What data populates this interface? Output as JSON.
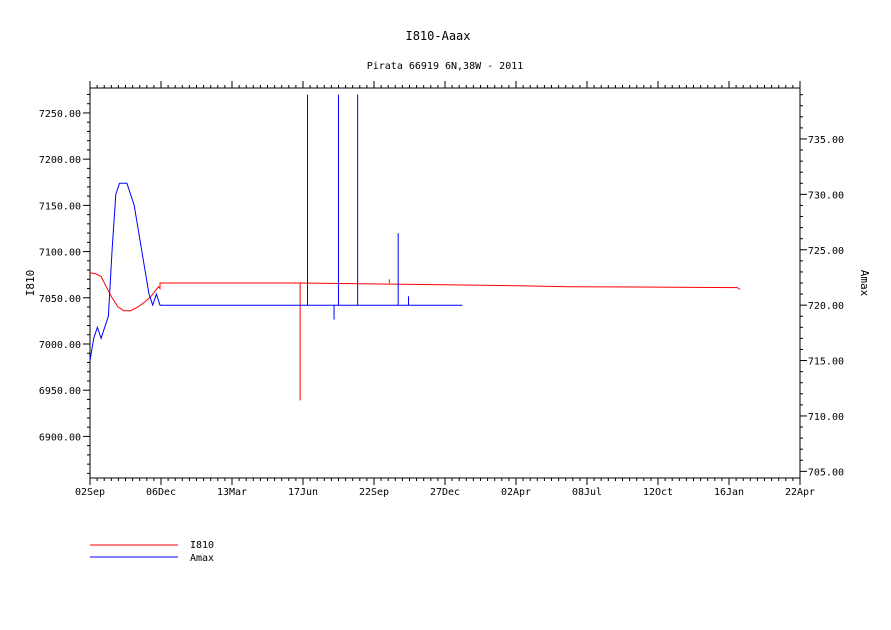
{
  "chart_data": {
    "type": "line",
    "title": "I810-Aaax",
    "subtitle": "Pirata 66919 6N,38W - 2011",
    "xlabel": "",
    "ylabel_left": "I810",
    "ylabel_right": "Amax",
    "x_ticks": [
      "02Sep",
      "06Dec",
      "13Mar",
      "17Jun",
      "22Sep",
      "27Dec",
      "02Apr",
      "08Jul",
      "12Oct",
      "16Jan",
      "22Apr"
    ],
    "xlim_days": [
      0,
      963
    ],
    "ylim_left": [
      6855,
      7277
    ],
    "ylim_right": [
      704.4,
      739.6
    ],
    "y_left_ticks": [
      6900,
      6950,
      7000,
      7050,
      7100,
      7150,
      7200,
      7250
    ],
    "y_left_tick_labels": [
      "6900.00",
      "6950.00",
      "7000.00",
      "7050.00",
      "7100.00",
      "7150.00",
      "7200.00",
      "7250.00"
    ],
    "y_right_ticks": [
      705,
      710,
      715,
      720,
      725,
      730,
      735
    ],
    "y_right_tick_labels": [
      "705.00",
      "710.00",
      "715.00",
      "720.00",
      "725.00",
      "730.00",
      "735.00"
    ],
    "grid": false,
    "legend_position": "bottom-left",
    "series": [
      {
        "name": "I810",
        "axis": "left",
        "color": "#ff0000",
        "points": [
          [
            0,
            7077
          ],
          [
            8,
            7076
          ],
          [
            15,
            7073
          ],
          [
            22,
            7062
          ],
          [
            30,
            7050
          ],
          [
            38,
            7040
          ],
          [
            46,
            7036
          ],
          [
            55,
            7036
          ],
          [
            65,
            7040
          ],
          [
            75,
            7046
          ],
          [
            82,
            7051
          ],
          [
            88,
            7057
          ],
          [
            93,
            7062
          ],
          [
            95,
            7060
          ],
          [
            95,
            7066
          ],
          [
            130,
            7066
          ],
          [
            186,
            7066
          ],
          [
            285,
            7066
          ],
          [
            380,
            7065
          ],
          [
            480,
            7064
          ],
          [
            580,
            7063
          ],
          [
            650,
            7062
          ],
          [
            878,
            7061
          ],
          [
            880,
            7060
          ],
          [
            882,
            7059
          ]
        ],
        "spikes": [
          [
            285,
            7066,
            6939
          ],
          [
            406,
            7066,
            7070
          ]
        ]
      },
      {
        "name": "Amax",
        "axis": "right",
        "color": "#0000ff",
        "points": [
          [
            0,
            715
          ],
          [
            5,
            717
          ],
          [
            10,
            718
          ],
          [
            15,
            717
          ],
          [
            20,
            718
          ],
          [
            25,
            719
          ],
          [
            30,
            725
          ],
          [
            35,
            730
          ],
          [
            40,
            731
          ],
          [
            45,
            731
          ],
          [
            50,
            731
          ],
          [
            55,
            730
          ],
          [
            60,
            729
          ],
          [
            65,
            727
          ],
          [
            70,
            725
          ],
          [
            75,
            723
          ],
          [
            80,
            721
          ],
          [
            85,
            720
          ],
          [
            90,
            721
          ],
          [
            95,
            720
          ],
          [
            100,
            720
          ],
          [
            150,
            720
          ],
          [
            200,
            720
          ],
          [
            250,
            720
          ],
          [
            300,
            720
          ],
          [
            350,
            720
          ],
          [
            400,
            720
          ],
          [
            450,
            720
          ],
          [
            500,
            720
          ],
          [
            505,
            720
          ]
        ],
        "spikes": [
          [
            295,
            720,
            739
          ],
          [
            337,
            720,
            739
          ],
          [
            363,
            720,
            739
          ],
          [
            331,
            720,
            718.7
          ],
          [
            418,
            720,
            726.5
          ],
          [
            432,
            720,
            720.8
          ]
        ]
      }
    ]
  }
}
